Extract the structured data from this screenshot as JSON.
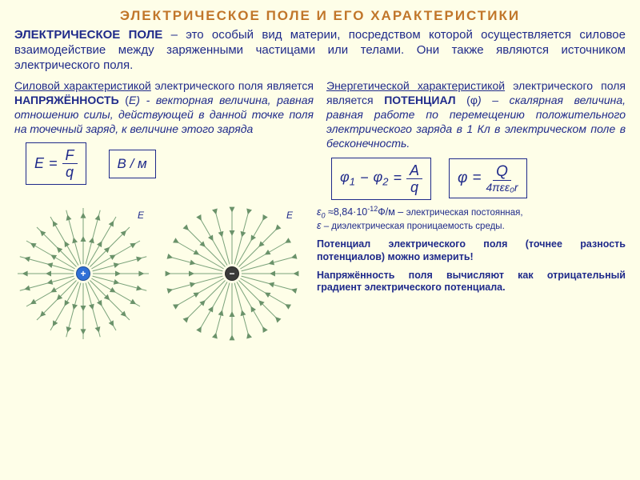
{
  "title": "ЭЛЕКТРИЧЕСКОЕ ПОЛЕ И ЕГО ХАРАКТЕРИСТИКИ",
  "intro": {
    "lead": "ЭЛЕКТРИЧЕСКОЕ ПОЛЕ",
    "rest": " – это особый вид материи, посредством которой осуществляется силовое взаимодействие между заряженными частицами или телами. Они также являются источником электрического поля."
  },
  "left": {
    "underlined": "Силовой характеристикой",
    "p1a": " электрического поля является ",
    "term": "НАПРЯЖЁННОСТЬ",
    "sym_open": " (",
    "sym": "E",
    "p1b": ") - векторная величина, равная отношению силы, действующей в данной точке поля на точечный заряд, к величине этого заряда",
    "formula_E": {
      "lhs": "E",
      "num": "F",
      "den": "q"
    },
    "unit": "В / м"
  },
  "right": {
    "underlined": "Энергетической характеристикой",
    "p1a": " электрического поля является ",
    "term": "ПОТЕНЦИАЛ",
    "sym_open": " (",
    "sym": "φ",
    "p1b": ") – скалярная величина, равная работе по перемещению положительного электрического заряда в 1 Кл в электрическом поле  в бесконечность.",
    "formula_diff": {
      "lhs1": "φ",
      "s1": "1",
      "minus": " − ",
      "lhs2": "φ",
      "s2": "2",
      "num": "A",
      "den": "q"
    },
    "formula_phi": {
      "lhs": "φ",
      "num": "Q",
      "den": "4πεε₀r"
    }
  },
  "constants": {
    "eps0_label": "ε",
    "eps0_sub": "0",
    "eps0_val": " ≈8,84·10",
    "eps0_exp": "-12",
    "eps0_unit": "Ф/м – ",
    "eps0_desc": "электрическая постоянная,",
    "eps_label": "ε",
    "eps_desc": " – диэлектрическая проницаемость среды."
  },
  "note_potential": {
    "a": "Потенциал электрического поля (",
    "b": "точнее разность потенциалов",
    "c": ") можно измерить!"
  },
  "note_grad": "Напряжённость поля вычисляют как отрицательный градиент электрического потенциала.",
  "diagram": {
    "E_label": "E",
    "line_color": "#7aa27a",
    "arrow_color": "#6a926a",
    "pos_color": "#2f6fd6",
    "neg_color": "#3a3a3a",
    "ray_count": 24,
    "ray_r_inner": 12,
    "ray_r_outer": 82
  }
}
